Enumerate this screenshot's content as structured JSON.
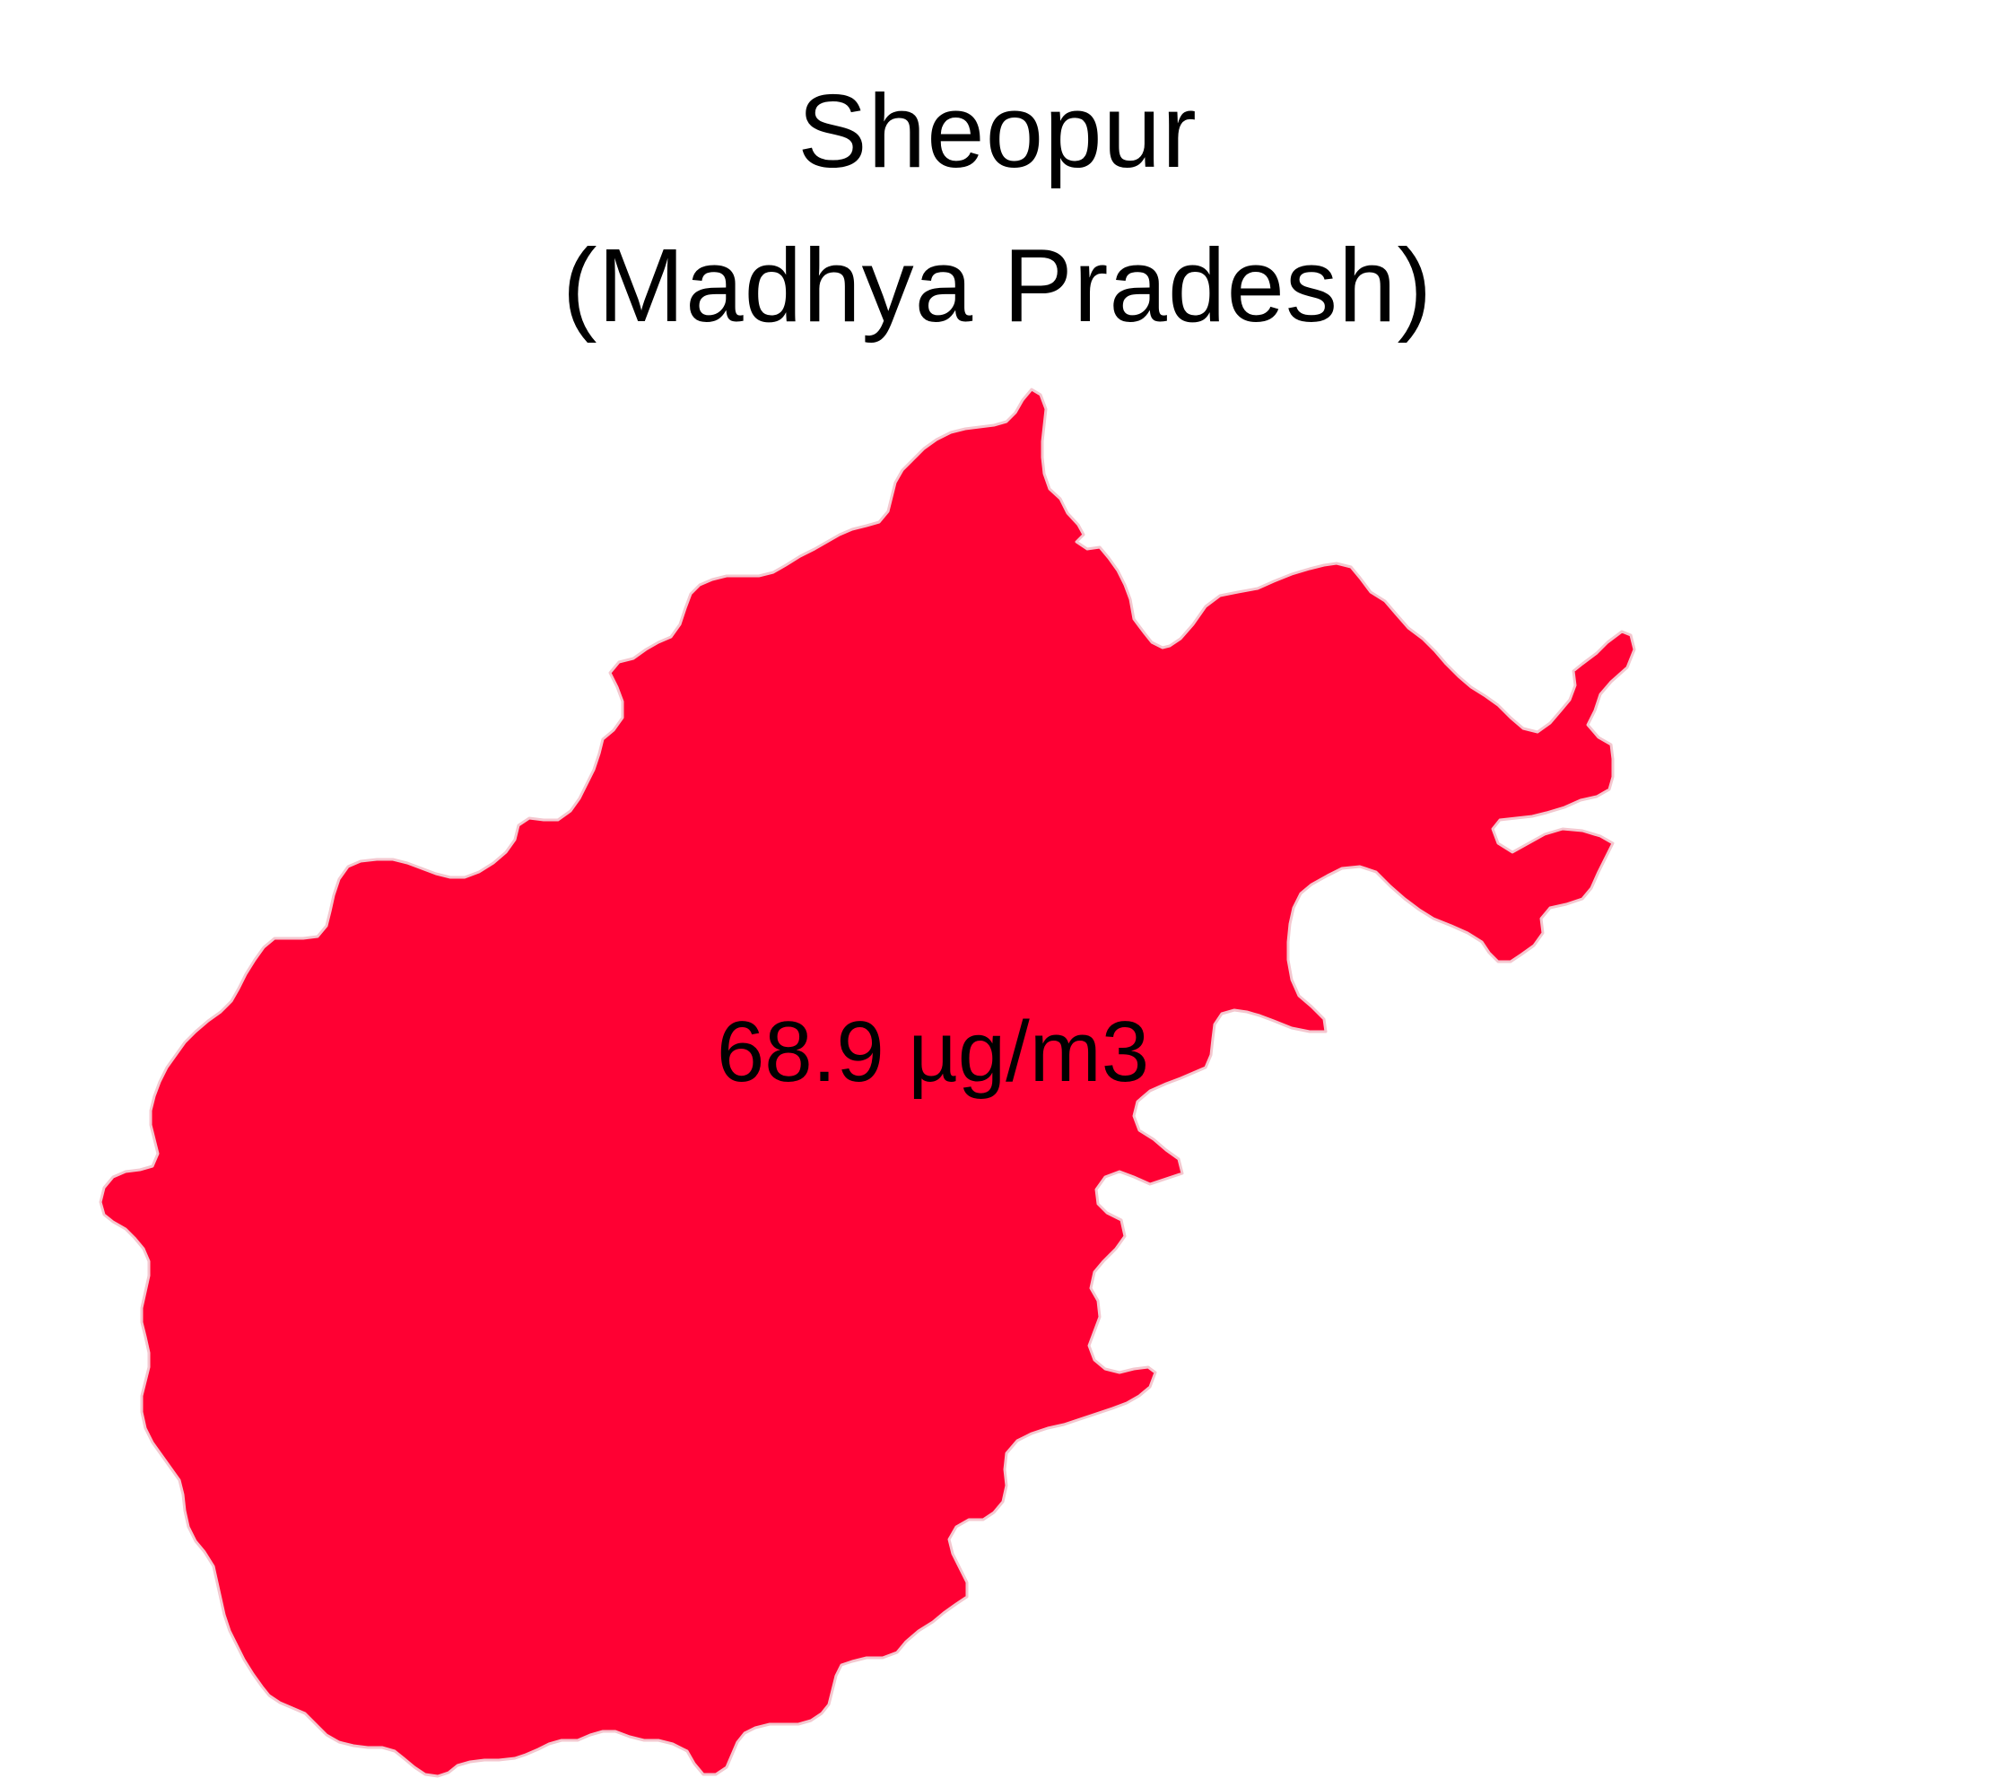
{
  "map": {
    "title": "Sheopur",
    "subtitle": "(Madhya Pradesh)",
    "region_name": "Sheopur",
    "fill_color": "#ff0033",
    "background_color": "#ffffff",
    "value_label": "68.9 µg/m3"
  }
}
